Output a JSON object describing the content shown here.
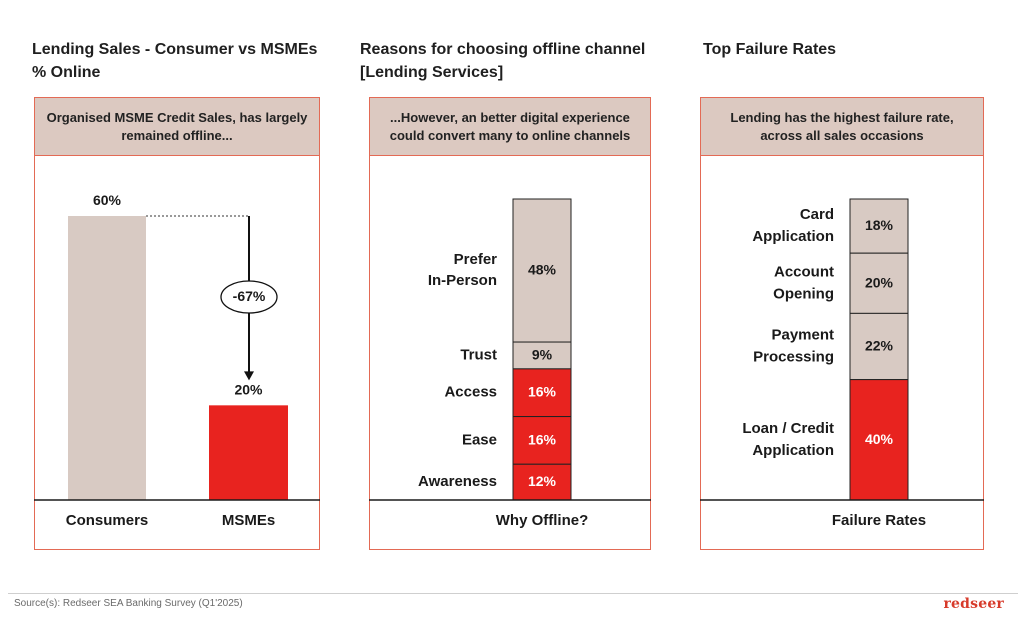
{
  "panels": [
    {
      "title_line1": "Lending Sales - Consumer vs MSMEs",
      "title_line2": "% Online",
      "callout_line1": "Organised MSME Credit Sales, has largely",
      "callout_line2": "remained offline..."
    },
    {
      "title_line1": "Reasons for choosing offline channel",
      "title_line2": "[Lending Services]",
      "callout_line1": "...However, an better digital experience",
      "callout_line2": "could convert many to online channels"
    },
    {
      "title_line1": "Top Failure Rates",
      "title_line2": "",
      "callout_line1": "Lending has the highest failure rate,",
      "callout_line2": "across all sales occasions"
    }
  ],
  "chart_data": [
    {
      "type": "bar",
      "categories": [
        "Consumers",
        "MSMEs"
      ],
      "values": [
        60,
        20
      ],
      "value_labels": [
        "60%",
        "20%"
      ],
      "annotation": "-67%",
      "colors": [
        "#d8cac3",
        "#e8231f"
      ],
      "ylim": [
        0,
        60
      ]
    },
    {
      "type": "bar",
      "stacked": true,
      "categories": [
        "Why Offline?"
      ],
      "series": [
        {
          "name": "Prefer\nIn-Person",
          "values": [
            48
          ],
          "value_label": "48%",
          "color": "#d8cac3"
        },
        {
          "name": "Trust",
          "values": [
            9
          ],
          "value_label": "9%",
          "color": "#d8cac3"
        },
        {
          "name": "Access",
          "values": [
            16
          ],
          "value_label": "16%",
          "color": "#e8231f"
        },
        {
          "name": "Ease",
          "values": [
            16
          ],
          "value_label": "16%",
          "color": "#e8231f"
        },
        {
          "name": "Awareness",
          "values": [
            12
          ],
          "value_label": "12%",
          "color": "#e8231f"
        }
      ]
    },
    {
      "type": "bar",
      "stacked": true,
      "categories": [
        "Failure Rates"
      ],
      "series": [
        {
          "name": "Card\nApplication",
          "values": [
            18
          ],
          "value_label": "18%",
          "color": "#d8cac3"
        },
        {
          "name": "Account\nOpening",
          "values": [
            20
          ],
          "value_label": "20%",
          "color": "#d8cac3"
        },
        {
          "name": "Payment\nProcessing",
          "values": [
            22
          ],
          "value_label": "22%",
          "color": "#d8cac3"
        },
        {
          "name": "Loan / Credit\nApplication",
          "values": [
            40
          ],
          "value_label": "40%",
          "color": "#e8231f"
        }
      ]
    }
  ],
  "footer": {
    "source": "Source(s): Redseer SEA Banking Survey (Q1'2025)",
    "logo": "redseer"
  }
}
